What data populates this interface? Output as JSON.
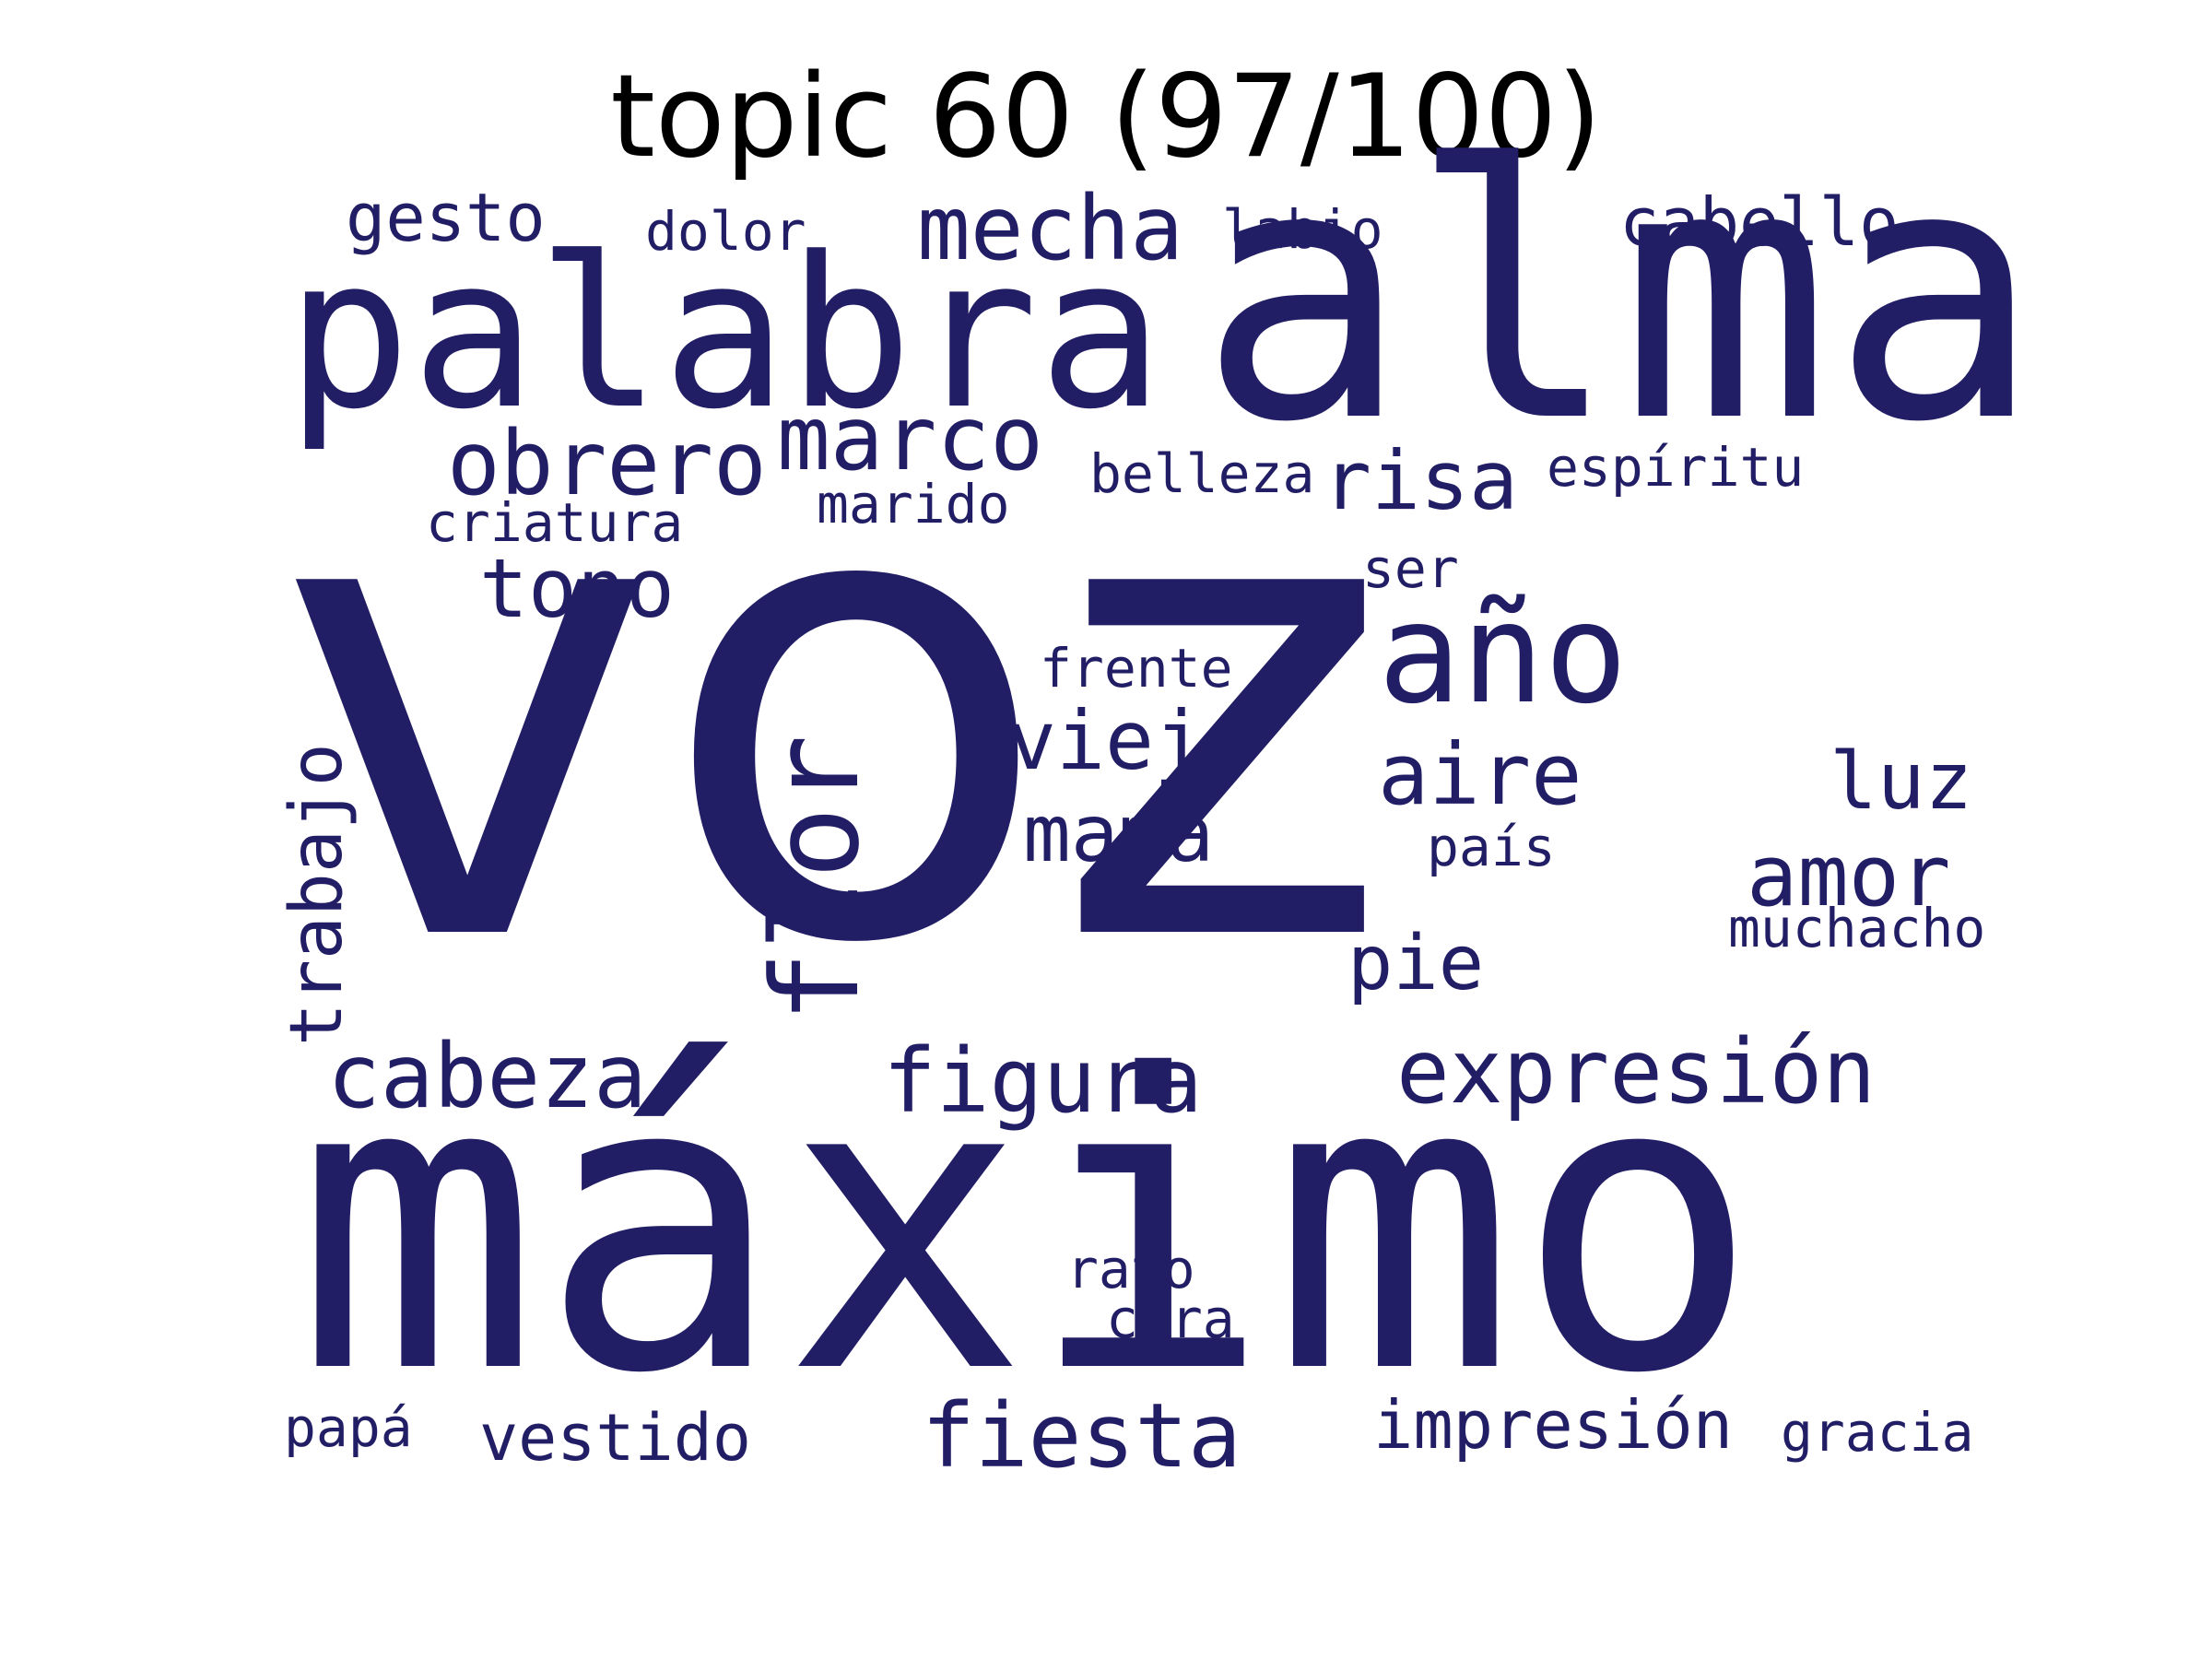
{
  "title": "topic 60 (97/100)",
  "color": "#221e65",
  "words": {
    "voz": "voz",
    "maximo": "máximo",
    "alma": "alma",
    "palabra": "palabra",
    "flor": "flor",
    "ano": "año",
    "obrero": "obrero",
    "marco": "marco",
    "mecha": "mecha",
    "tono": "tono",
    "risa": "risa",
    "cabeza": "cabeza",
    "figura": "figura",
    "expresion": "expresión",
    "fiesta": "fiesta",
    "trabajo": "trabajo",
    "viejo": "viejo",
    "mama": "mamá",
    "aire": "aire",
    "amor": "amor",
    "luz": "luz",
    "pie": "pie",
    "gesto": "gesto",
    "cabello": "cabello",
    "impresion": "impresión",
    "vestido": "vestido",
    "dolor": "dolor",
    "labio": "labio",
    "belleza": "belleza",
    "espiritu": "espíritu",
    "criatura": "criatura",
    "marido": "marido",
    "ser": "ser",
    "frente": "frente",
    "pais": "país",
    "muchacho": "muchacho",
    "rato": "rato",
    "cara": "cara",
    "papa": "papá",
    "gracia": "gracia"
  }
}
